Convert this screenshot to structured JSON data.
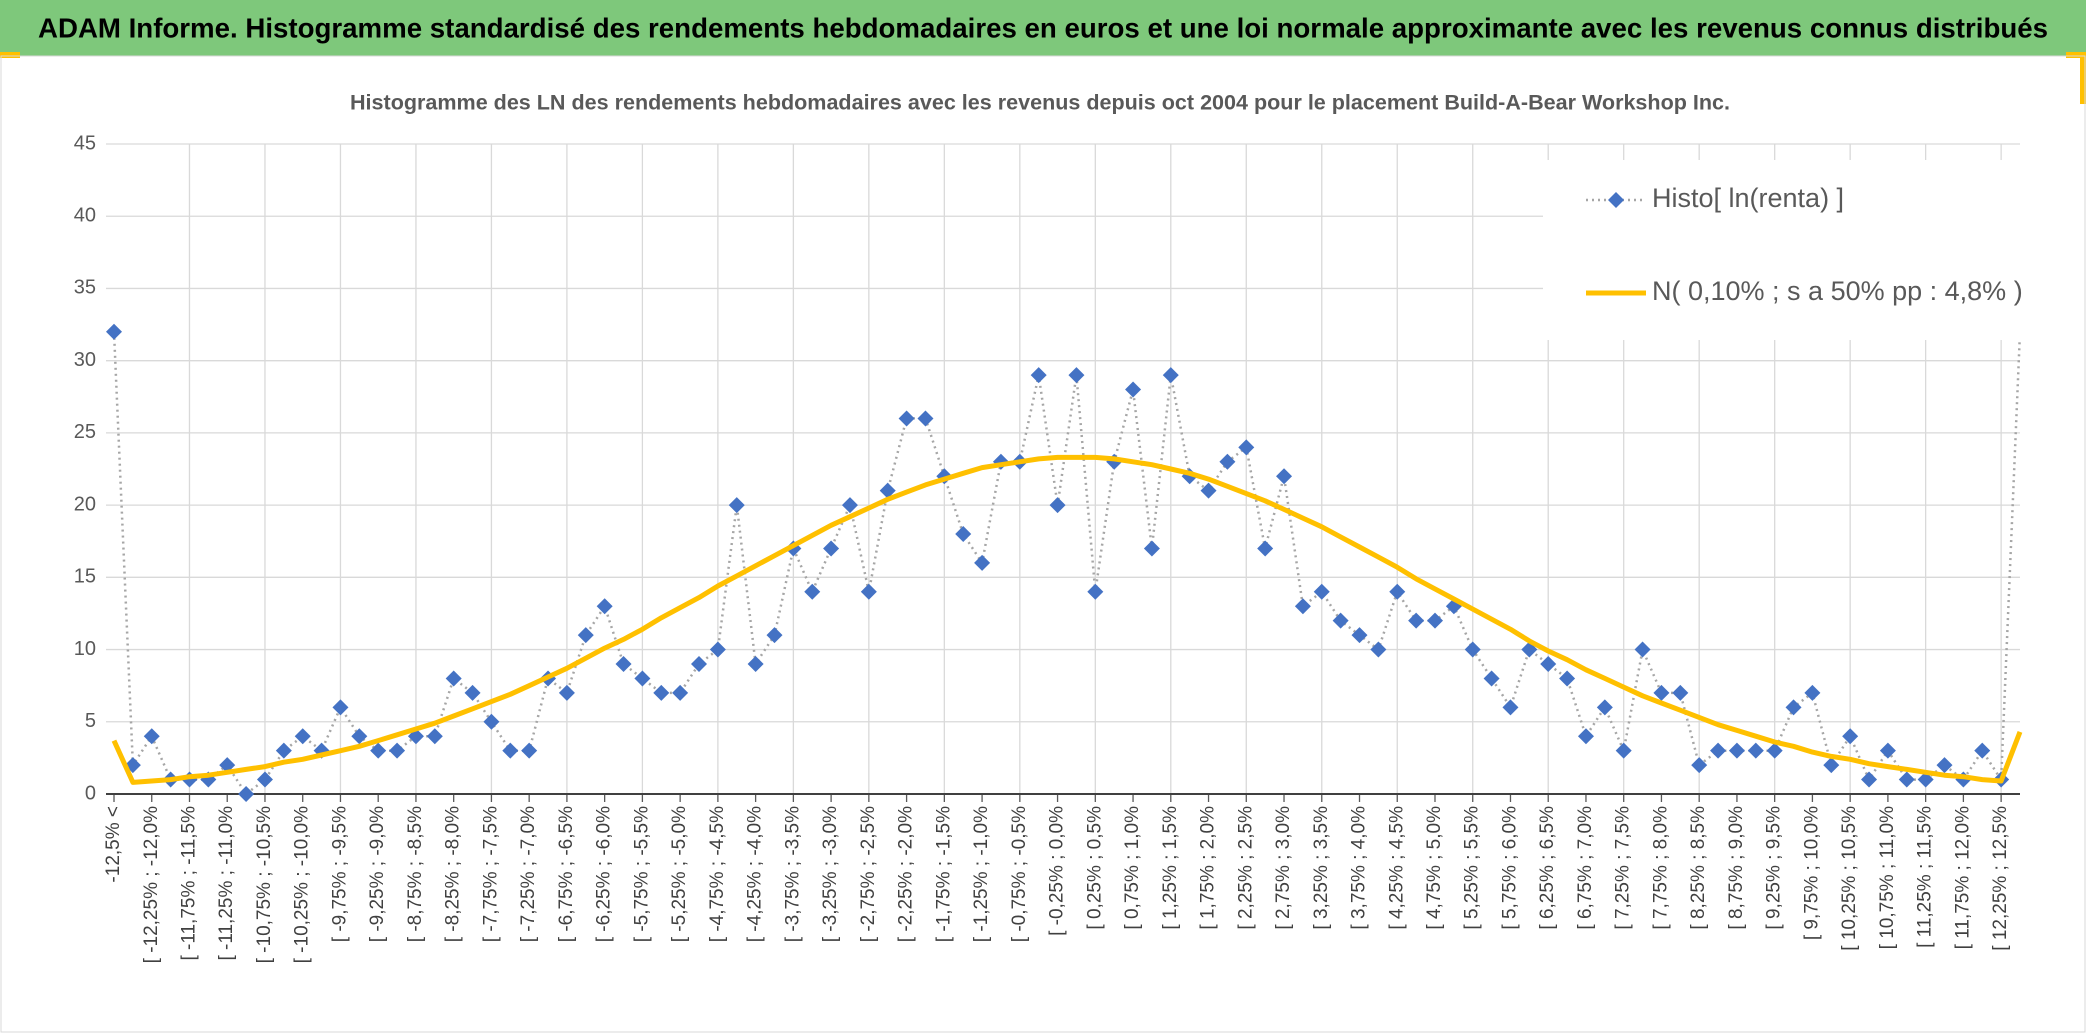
{
  "header": {
    "title": "ADAM Informe. Histogramme standardisé des rendements hebdomadaires en euros et une loi normale approximante avec les revenus connus distribués"
  },
  "chart_data": {
    "type": "line",
    "title": "Histogramme des LN des rendements hebdomadaires avec les revenus depuis oct 2004 pour le placement Build-A-Bear Workshop Inc.",
    "categories": [
      "-12,5% <",
      null,
      "[ -12,25% ; -12,0%",
      null,
      "[ -11,75% ; -11,5%",
      null,
      "[ -11,25% ; -11,0%",
      null,
      "[ -10,75% ; -10,5%",
      null,
      "[ -10,25% ; -10,0%",
      null,
      "[ -9,75% ; -9,5%",
      null,
      "[ -9,25% ; -9,0%",
      null,
      "[ -8,75% ; -8,5%",
      null,
      "[ -8,25% ; -8,0%",
      null,
      "[ -7,75% ; -7,5%",
      null,
      "[ -7,25% ; -7,0%",
      null,
      "[ -6,75% ; -6,5%",
      null,
      "[ -6,25% ; -6,0%",
      null,
      "[ -5,75% ; -5,5%",
      null,
      "[ -5,25% ; -5,0%",
      null,
      "[ -4,75% ; -4,5%",
      null,
      "[ -4,25% ; -4,0%",
      null,
      "[ -3,75% ; -3,5%",
      null,
      "[ -3,25% ; -3,0%",
      null,
      "[ -2,75% ; -2,5%",
      null,
      "[ -2,25% ; -2,0%",
      null,
      "[ -1,75% ; -1,5%",
      null,
      "[ -1,25% ; -1,0%",
      null,
      "[ -0,75% ; -0,5%",
      null,
      "[ -0,25% ; 0,0%",
      null,
      "[ 0,25% ; 0,5%",
      null,
      "[ 0,75% ; 1,0%",
      null,
      "[ 1,25% ; 1,5%",
      null,
      "[ 1,75% ; 2,0%",
      null,
      "[ 2,25% ; 2,5%",
      null,
      "[ 2,75% ; 3,0%",
      null,
      "[ 3,25% ; 3,5%",
      null,
      "[ 3,75% ; 4,0%",
      null,
      "[ 4,25% ; 4,5%",
      null,
      "[ 4,75% ; 5,0%",
      null,
      "[ 5,25% ; 5,5%",
      null,
      "[ 5,75% ; 6,0%",
      null,
      "[ 6,25% ; 6,5%",
      null,
      "[ 6,75% ; 7,0%",
      null,
      "[ 7,25% ; 7,5%",
      null,
      "[ 7,75% ; 8,0%",
      null,
      "[ 8,25% ; 8,5%",
      null,
      "[ 8,75% ; 9,0%",
      null,
      "[ 9,25% ; 9,5%",
      null,
      "[ 9,75% ; 10,0%",
      null,
      "[ 10,25% ; 10,5%",
      null,
      "[ 10,75% ; 11,0%",
      null,
      "[ 11,25% ; 11,5%",
      null,
      "[ 11,75% ; 12,0%",
      null,
      "[ 12,25% ; 12,5%",
      null
    ],
    "series": [
      {
        "name": "Histo[ ln(renta) ]",
        "color": "#4472c4",
        "line_color": "#a6a6a6",
        "style": "markers-dotted",
        "values": [
          32,
          2,
          4,
          1,
          1,
          1,
          2,
          0,
          1,
          3,
          4,
          3,
          6,
          4,
          3,
          3,
          4,
          4,
          8,
          7,
          5,
          3,
          3,
          8,
          7,
          11,
          13,
          9,
          8,
          7,
          7,
          9,
          10,
          20,
          9,
          11,
          17,
          14,
          17,
          20,
          14,
          21,
          26,
          26,
          22,
          18,
          16,
          23,
          23,
          29,
          20,
          29,
          14,
          23,
          28,
          17,
          29,
          22,
          21,
          23,
          24,
          17,
          22,
          13,
          14,
          12,
          11,
          10,
          14,
          12,
          12,
          13,
          10,
          8,
          6,
          10,
          9,
          8,
          4,
          6,
          3,
          10,
          7,
          7,
          2,
          3,
          3,
          3,
          3,
          6,
          7,
          2,
          4,
          1,
          3,
          1,
          1,
          2,
          1,
          3,
          1,
          32
        ]
      },
      {
        "name": "N( 0,10% ; s a 50% pp : 4,8% )",
        "color": "#ffc000",
        "style": "line",
        "values": [
          3.7,
          0.8,
          0.9,
          1.0,
          1.2,
          1.3,
          1.5,
          1.7,
          1.9,
          2.2,
          2.4,
          2.7,
          3.0,
          3.3,
          3.7,
          4.1,
          4.5,
          4.9,
          5.4,
          5.9,
          6.4,
          6.9,
          7.5,
          8.1,
          8.7,
          9.4,
          10.1,
          10.7,
          11.4,
          12.2,
          12.9,
          13.6,
          14.4,
          15.1,
          15.8,
          16.5,
          17.2,
          17.9,
          18.6,
          19.2,
          19.8,
          20.4,
          20.9,
          21.4,
          21.8,
          22.2,
          22.6,
          22.8,
          23.0,
          23.2,
          23.3,
          23.3,
          23.3,
          23.2,
          23.0,
          22.8,
          22.5,
          22.2,
          21.8,
          21.3,
          20.8,
          20.3,
          19.7,
          19.1,
          18.5,
          17.8,
          17.1,
          16.4,
          15.7,
          14.9,
          14.2,
          13.5,
          12.8,
          12.1,
          11.4,
          10.6,
          9.9,
          9.3,
          8.6,
          8.0,
          7.4,
          6.8,
          6.3,
          5.8,
          5.3,
          4.8,
          4.4,
          4.0,
          3.6,
          3.3,
          2.9,
          2.6,
          2.4,
          2.1,
          1.9,
          1.7,
          1.5,
          1.3,
          1.2,
          1.0,
          0.9,
          4.3
        ]
      }
    ],
    "ylim": [
      0,
      45
    ],
    "yticks": [
      0,
      5,
      10,
      15,
      20,
      25,
      30,
      35,
      40,
      45
    ],
    "grid": true,
    "legend": "upper right"
  }
}
